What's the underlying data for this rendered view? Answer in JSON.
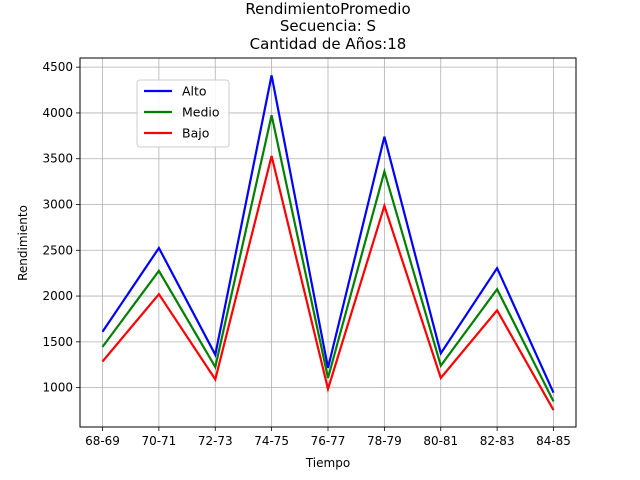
{
  "chart_data": {
    "type": "line",
    "title_lines": [
      "RendimientoPromedio",
      "Secuencia: S",
      "Cantidad de Años:18"
    ],
    "xlabel": "Tiempo",
    "ylabel": "Rendimiento",
    "categories": [
      "68-69",
      "70-71",
      "72-73",
      "74-75",
      "76-77",
      "78-79",
      "80-81",
      "82-83",
      "84-85"
    ],
    "ylim": [
      570,
      4600
    ],
    "yticks": [
      1000,
      1500,
      2000,
      2500,
      3000,
      3500,
      4000,
      4500
    ],
    "grid": true,
    "legend_position": "upper-left",
    "series": [
      {
        "name": "Alto",
        "color": "#0000ff",
        "values": [
          1610,
          2525,
          1360,
          4410,
          1215,
          3740,
          1375,
          2305,
          945
        ]
      },
      {
        "name": "Medio",
        "color": "#008000",
        "values": [
          1445,
          2275,
          1225,
          3975,
          1105,
          3360,
          1240,
          2075,
          850
        ]
      },
      {
        "name": "Bajo",
        "color": "#ff0000",
        "values": [
          1285,
          2020,
          1090,
          3530,
          985,
          2985,
          1105,
          1845,
          755
        ]
      }
    ]
  }
}
